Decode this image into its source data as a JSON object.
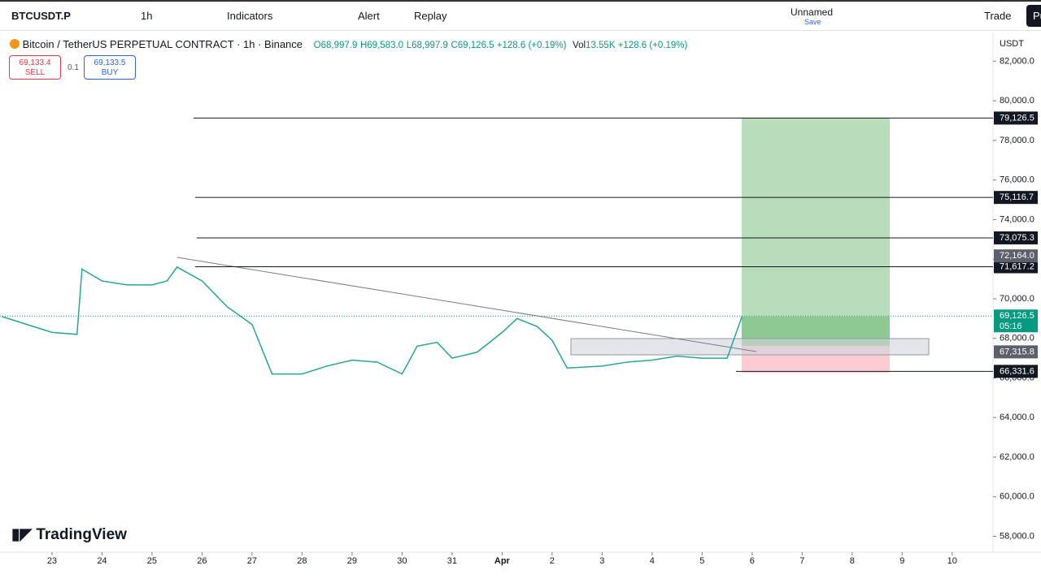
{
  "toolbar": {
    "symbol": "BTCUSDT.P",
    "interval": "1h",
    "indicators": "Indicators",
    "alert": "Alert",
    "replay": "Replay",
    "layout_name": "Unnamed",
    "save": "Save",
    "trade": "Trade",
    "publish": "Pu"
  },
  "legend": {
    "title": "Bitcoin / TetherUS PERPETUAL CONTRACT · 1h · Binance",
    "open": "O68,997.9",
    "high": "H69,583.0",
    "low": "L68,997.9",
    "close": "C69,126.5 +128.6 (+0.19%)",
    "volume_label": "Vol",
    "volume": "13.55K +128.6 (+0.19%)"
  },
  "order": {
    "sell_price": "69,133.4",
    "sell": "SELL",
    "spread": "0.1",
    "buy_price": "69,133.5",
    "buy": "BUY"
  },
  "brand": "TradingView",
  "currency": "USDT",
  "countdown": "05:16",
  "chart_data": {
    "type": "line",
    "color": "#26a69a",
    "x": [
      -1,
      -0.5,
      0,
      0.5,
      0.6,
      1,
      1.5,
      2,
      2.3,
      2.5,
      3,
      3.5,
      4,
      4.4,
      5,
      5.5,
      6,
      6.5,
      7,
      7.3,
      7.7,
      8,
      8.5,
      9,
      9.3,
      9.7,
      10,
      10.3,
      11,
      11.5,
      12,
      12.5,
      13,
      13.5,
      13.8
    ],
    "series": [
      {
        "values": [
          69100,
          68700,
          68300,
          68200,
          71500,
          70900,
          70700,
          70700,
          70900,
          71600,
          70900,
          69600,
          68700,
          66200,
          66200,
          66600,
          66900,
          66800,
          66200,
          67600,
          67800,
          67000,
          67300,
          68300,
          69000,
          68600,
          67900,
          66500,
          66600,
          66800,
          66900,
          67100,
          67000,
          67000,
          69126.5
        ]
      }
    ],
    "xlim": [
      -1.04,
      18.8
    ],
    "ylim": [
      57200,
      83450
    ],
    "xticks": [
      {
        "value": 0,
        "label": "23"
      },
      {
        "value": 1,
        "label": "24"
      },
      {
        "value": 2,
        "label": "25"
      },
      {
        "value": 3,
        "label": "26"
      },
      {
        "value": 4,
        "label": "27"
      },
      {
        "value": 5,
        "label": "28"
      },
      {
        "value": 6,
        "label": "29"
      },
      {
        "value": 7,
        "label": "30"
      },
      {
        "value": 8,
        "label": "31"
      },
      {
        "value": 9,
        "label": "Apr"
      },
      {
        "value": 10,
        "label": "2"
      },
      {
        "value": 11,
        "label": "3"
      },
      {
        "value": 12,
        "label": "4"
      },
      {
        "value": 13,
        "label": "5"
      },
      {
        "value": 14,
        "label": "6"
      },
      {
        "value": 15,
        "label": "7"
      },
      {
        "value": 16,
        "label": "8"
      },
      {
        "value": 17,
        "label": "9"
      },
      {
        "value": 18,
        "label": "10"
      }
    ],
    "yticks": [
      {
        "value": 58000,
        "label": "58,000.0"
      },
      {
        "value": 60000,
        "label": "60,000.0"
      },
      {
        "value": 62000,
        "label": "62,000.0"
      },
      {
        "value": 64000,
        "label": "64,000.0"
      },
      {
        "value": 66000,
        "label": "66,000.0"
      },
      {
        "value": 68000,
        "label": "68,000.0"
      },
      {
        "value": 70000,
        "label": "70,000.0"
      },
      {
        "value": 72000,
        "label": "72,000.0"
      },
      {
        "value": 74000,
        "label": "74,000.0"
      },
      {
        "value": 76000,
        "label": "76,000.0"
      },
      {
        "value": 78000,
        "label": "78,000.0"
      },
      {
        "value": 80000,
        "label": "80,000.0"
      },
      {
        "value": 82000,
        "label": "82,000.0"
      }
    ],
    "levels": [
      {
        "value": 79126.5,
        "label": "79,126.5"
      },
      {
        "value": 75116.7,
        "label": "75,116.7"
      },
      {
        "value": 73075.3,
        "label": "73,075.3"
      },
      {
        "value": 71617.2,
        "label": "71,617.2"
      },
      {
        "value": 66331.6,
        "label": "66,331.6"
      }
    ],
    "marker_levels": [
      {
        "value": 72164.0,
        "label": "72,164.0"
      },
      {
        "value": 67315.8,
        "label": "67,315.8"
      }
    ],
    "last_price": {
      "value": 69126.5,
      "label": "69,126.5"
    }
  }
}
